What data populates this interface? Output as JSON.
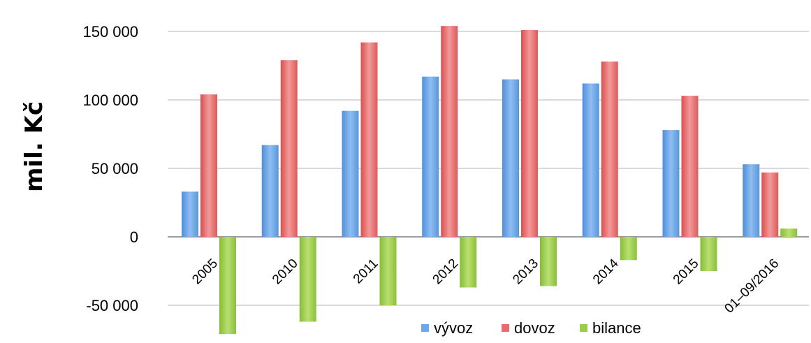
{
  "chart_data": {
    "type": "bar",
    "title": "",
    "xlabel": "",
    "ylabel": "mil. Kč",
    "ylim": [
      -50000,
      150000
    ],
    "yticks": [
      150000,
      100000,
      50000,
      0,
      -50000
    ],
    "ytick_labels": [
      "150 000",
      "100 000",
      "50 000",
      "0",
      "-50 000"
    ],
    "grid": true,
    "legend_position": "bottom",
    "categories": [
      "2005",
      "2010",
      "2011",
      "2012",
      "2013",
      "2014",
      "2015",
      "01–09/2016"
    ],
    "series": [
      {
        "name": "vývoz",
        "color": "#6fa8e8",
        "values": [
          33000,
          67000,
          92000,
          117000,
          115000,
          112000,
          78000,
          53000
        ]
      },
      {
        "name": "dovoz",
        "color": "#e96b6b",
        "values": [
          104000,
          129000,
          142000,
          154000,
          151000,
          128000,
          103000,
          47000
        ]
      },
      {
        "name": "bilance",
        "color": "#9ccc4a",
        "values": [
          -71000,
          -62000,
          -50000,
          -37000,
          -36000,
          -17000,
          -25000,
          6000
        ]
      }
    ]
  }
}
